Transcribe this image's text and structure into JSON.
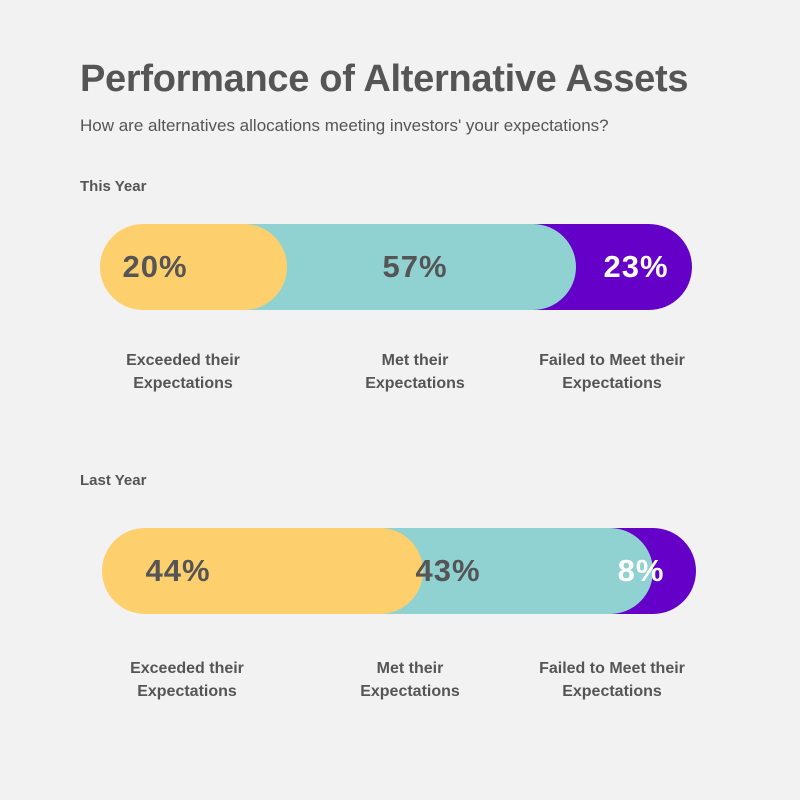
{
  "title": "Performance of Alternative Assets",
  "subtitle": "How are alternatives allocations meeting investors' your expectations?",
  "colors": {
    "exceeded": "#fed06d",
    "met": "#90d2d2",
    "failed": "#6400c8",
    "dark_text": "#555555",
    "light_text": "#ffffff",
    "background": "#f2f2f2"
  },
  "chart_data": [
    {
      "type": "bar",
      "title": "This Year",
      "categories": [
        "Exceeded their Expectations",
        "Met their Expectations",
        "Failed to Meet their Expectations"
      ],
      "values": [
        20,
        57,
        23
      ],
      "value_labels": [
        "20%",
        "57%",
        "23%"
      ],
      "category_lines": [
        [
          "Exceeded their",
          "Expectations"
        ],
        [
          "Met their",
          "Expectations"
        ],
        [
          "Failed to Meet their",
          "Expectations"
        ]
      ]
    },
    {
      "type": "bar",
      "title": "Last Year",
      "categories": [
        "Exceeded their Expectations",
        "Met their Expectations",
        "Failed to Meet their Expectations"
      ],
      "values": [
        44,
        43,
        8
      ],
      "value_labels": [
        "44%",
        "43%",
        "8%"
      ],
      "category_lines": [
        [
          "Exceeded their",
          "Expectations"
        ],
        [
          "Met their",
          "Expectations"
        ],
        [
          "Failed to Meet their",
          "Expectations"
        ]
      ]
    }
  ]
}
